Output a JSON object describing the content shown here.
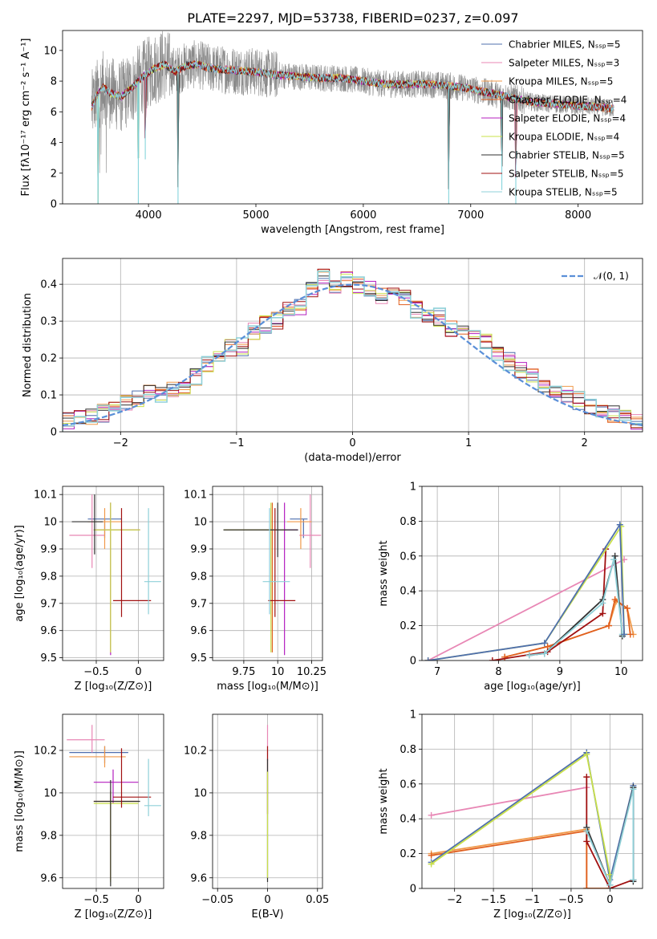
{
  "colors": {
    "Chabrier MILES": "#4f6fae",
    "Salpeter MILES": "#e887b5",
    "Kroupa MILES": "#f0994a",
    "Chabrier ELODIE": "#e05f1e",
    "Salpeter ELODIE": "#b41fbf",
    "Kroupa ELODIE": "#c9e04a",
    "Chabrier STELIB": "#303030",
    "Salpeter STELIB": "#a01010",
    "Kroupa STELIB": "#8fd0d8",
    "gaussian": "#5a8fd8"
  },
  "chart_data": [
    {
      "id": "spectrum",
      "type": "line",
      "title": "PLATE=2297, MJD=53738, FIBERID=0237, z=0.097",
      "xlabel": "wavelength [Angstrom, rest frame]",
      "ylabel": "Flux [fλ10⁻¹⁷ erg cm⁻² s⁻¹ A⁻¹]",
      "xlim": [
        3200,
        8600
      ],
      "ylim": [
        0,
        11.3
      ],
      "xticks": [
        4000,
        5000,
        6000,
        7000,
        8000
      ],
      "yticks": [
        0,
        2,
        4,
        6,
        8,
        10
      ],
      "legend_position": "upper right",
      "legend": [
        "Chabrier MILES, Nₛₛₚ=5",
        "Salpeter MILES, Nₛₛₚ=3",
        "Kroupa MILES, Nₛₛₚ=5",
        "Chabrier ELODIE, Nₛₛₚ=4",
        "Salpeter ELODIE, Nₛₛₚ=4",
        "Kroupa ELODIE, Nₛₛₚ=4",
        "Chabrier STELIB, Nₛₛₚ=5",
        "Salpeter STELIB, Nₛₛₚ=5",
        "Kroupa STELIB, Nₛₛₚ=5"
      ],
      "legend_series": [
        "Chabrier MILES",
        "Salpeter MILES",
        "Kroupa MILES",
        "Chabrier ELODIE",
        "Salpeter ELODIE",
        "Kroupa ELODIE",
        "Chabrier STELIB",
        "Salpeter STELIB",
        "Kroupa STELIB"
      ],
      "continuum": {
        "x": [
          3470,
          3520,
          3580,
          3650,
          3750,
          3850,
          3950,
          4050,
          4150,
          4250,
          4350,
          4450,
          4600,
          4800,
          5000,
          5200,
          5400,
          5600,
          5800,
          6000,
          6200,
          6400,
          6600,
          6800,
          7000,
          7200,
          7400,
          7600,
          7800,
          8000,
          8200,
          8330
        ],
        "y": [
          6.3,
          7.1,
          7.6,
          7.2,
          7.0,
          7.6,
          8.3,
          8.8,
          9.1,
          8.6,
          9.0,
          9.1,
          8.8,
          8.7,
          8.6,
          8.4,
          8.3,
          8.2,
          8.2,
          8.0,
          7.8,
          7.8,
          7.8,
          7.7,
          7.5,
          7.2,
          6.9,
          6.6,
          6.5,
          6.4,
          6.3,
          6.2
        ]
      },
      "absorption_features": [
        {
          "x": 3530,
          "y": 0.0
        },
        {
          "x": 3905,
          "y": 0.0
        },
        {
          "x": 3970,
          "y": 2.9
        },
        {
          "x": 4275,
          "y": 0.0
        },
        {
          "x": 6795,
          "y": 0.0
        },
        {
          "x": 7290,
          "y": 0.9
        },
        {
          "x": 7420,
          "y": 0.0
        }
      ]
    },
    {
      "id": "residuals",
      "type": "line",
      "xlabel": "(data-model)/error",
      "ylabel": "Normed distribution",
      "xlim": [
        -2.5,
        2.5
      ],
      "ylim": [
        0,
        0.47
      ],
      "xticks": [
        -2,
        -1,
        0,
        1,
        2
      ],
      "yticks": [
        0.0,
        0.1,
        0.2,
        0.3,
        0.4
      ],
      "legend": [
        "𝒩(0, 1)"
      ],
      "legend_position": "upper right",
      "bin_edges": [
        -2.5,
        -2.4,
        -2.3,
        -2.2,
        -2.1,
        -2.0,
        -1.9,
        -1.8,
        -1.7,
        -1.6,
        -1.5,
        -1.4,
        -1.3,
        -1.2,
        -1.1,
        -1.0,
        -0.9,
        -0.8,
        -0.7,
        -0.6,
        -0.5,
        -0.4,
        -0.3,
        -0.2,
        -0.1,
        0.0,
        0.1,
        0.2,
        0.3,
        0.4,
        0.5,
        0.6,
        0.7,
        0.8,
        0.9,
        1.0,
        1.1,
        1.2,
        1.3,
        1.4,
        1.5,
        1.6,
        1.7,
        1.8,
        1.9,
        2.0,
        2.1,
        2.2,
        2.3,
        2.4,
        2.5
      ],
      "histogram_base": [
        0.03,
        0.035,
        0.045,
        0.05,
        0.06,
        0.075,
        0.09,
        0.11,
        0.105,
        0.12,
        0.12,
        0.15,
        0.18,
        0.2,
        0.23,
        0.23,
        0.27,
        0.29,
        0.3,
        0.33,
        0.34,
        0.38,
        0.42,
        0.39,
        0.41,
        0.4,
        0.39,
        0.37,
        0.38,
        0.36,
        0.33,
        0.31,
        0.31,
        0.28,
        0.28,
        0.27,
        0.24,
        0.21,
        0.19,
        0.17,
        0.15,
        0.12,
        0.11,
        0.1,
        0.085,
        0.07,
        0.06,
        0.05,
        0.04,
        0.03
      ],
      "gaussian": {
        "mean": 0,
        "sigma": 1
      }
    },
    {
      "id": "age-vs-Z",
      "type": "scatter",
      "xlabel": "Z [log₁₀(Z/Z⊙)]",
      "ylabel": "age  [log₁₀(age/yr)]",
      "xlim": [
        -0.9,
        0.3
      ],
      "ylim": [
        9.49,
        10.13
      ],
      "xticks": [
        -0.5,
        0.0
      ],
      "yticks": [
        9.5,
        9.6,
        9.7,
        9.8,
        9.9,
        10.0,
        10.1
      ],
      "errorbars": [
        {
          "series": "Chabrier MILES",
          "x": -0.4,
          "y": 10.01,
          "xerr": [
            0.2,
            0.2
          ],
          "yerr": [
            0.07,
            0.0
          ]
        },
        {
          "series": "Salpeter MILES",
          "x": -0.55,
          "y": 9.95,
          "xerr": [
            0.27,
            0.15
          ],
          "yerr": [
            0.12,
            0.15
          ]
        },
        {
          "series": "Kroupa MILES",
          "x": -0.4,
          "y": 10.0,
          "xerr": [
            0.2,
            0.2
          ],
          "yerr": [
            0.1,
            0.05
          ]
        },
        {
          "series": "Chabrier ELODIE",
          "x": -0.33,
          "y": 9.97,
          "xerr": [
            0.2,
            0.35
          ],
          "yerr": [
            0.45,
            0.1
          ]
        },
        {
          "series": "Salpeter ELODIE",
          "x": -0.33,
          "y": 9.97,
          "xerr": [
            0.2,
            0.35
          ],
          "yerr": [
            0.46,
            0.1
          ]
        },
        {
          "series": "Kroupa ELODIE",
          "x": -0.33,
          "y": 9.97,
          "xerr": [
            0.2,
            0.35
          ],
          "yerr": [
            0.45,
            0.1
          ]
        },
        {
          "series": "Chabrier STELIB",
          "x": -0.52,
          "y": 10.0,
          "xerr": [
            0.27,
            0.1
          ],
          "yerr": [
            0.12,
            0.1
          ]
        },
        {
          "series": "Salpeter STELIB",
          "x": -0.2,
          "y": 9.71,
          "xerr": [
            0.1,
            0.35
          ],
          "yerr": [
            0.06,
            0.34
          ]
        },
        {
          "series": "Kroupa STELIB",
          "x": 0.12,
          "y": 9.78,
          "xerr": [
            0.05,
            0.15
          ],
          "yerr": [
            0.12,
            0.27
          ]
        }
      ]
    },
    {
      "id": "age-vs-mass",
      "type": "scatter",
      "xlabel": "mass [log₁₀(M/M⊙)]",
      "ylabel": "",
      "xlim": [
        9.52,
        10.33
      ],
      "ylim": [
        9.49,
        10.13
      ],
      "xticks": [
        9.75,
        10.0,
        10.25
      ],
      "yticks": [
        9.5,
        9.6,
        9.7,
        9.8,
        9.9,
        10.0,
        10.1
      ],
      "errorbars": [
        {
          "series": "Chabrier MILES",
          "x": 10.19,
          "y": 10.01,
          "xerr": [
            0.1,
            0.03
          ],
          "yerr": [
            0.07,
            0.0
          ]
        },
        {
          "series": "Salpeter MILES",
          "x": 10.24,
          "y": 9.95,
          "xerr": [
            0.08,
            0.08
          ],
          "yerr": [
            0.12,
            0.15
          ]
        },
        {
          "series": "Kroupa MILES",
          "x": 10.17,
          "y": 10.0,
          "xerr": [
            0.1,
            0.08
          ],
          "yerr": [
            0.1,
            0.05
          ]
        },
        {
          "series": "Chabrier ELODIE",
          "x": 9.96,
          "y": 9.97,
          "xerr": [
            0.35,
            0.1
          ],
          "yerr": [
            0.45,
            0.1
          ]
        },
        {
          "series": "Salpeter ELODIE",
          "x": 10.05,
          "y": 9.97,
          "xerr": [
            0.1,
            0.1
          ],
          "yerr": [
            0.46,
            0.1
          ]
        },
        {
          "series": "Kroupa ELODIE",
          "x": 9.95,
          "y": 9.97,
          "xerr": [
            0.35,
            0.1
          ],
          "yerr": [
            0.45,
            0.1
          ]
        },
        {
          "series": "Chabrier STELIB",
          "x": 10.0,
          "y": 9.97,
          "xerr": [
            0.4,
            0.15
          ],
          "yerr": [
            0.1,
            0.1
          ]
        },
        {
          "series": "Salpeter STELIB",
          "x": 9.98,
          "y": 9.71,
          "xerr": [
            0.05,
            0.15
          ],
          "yerr": [
            0.06,
            0.34
          ]
        },
        {
          "series": "Kroupa STELIB",
          "x": 9.94,
          "y": 9.78,
          "xerr": [
            0.05,
            0.15
          ],
          "yerr": [
            0.12,
            0.27
          ]
        }
      ]
    },
    {
      "id": "massweight-vs-age",
      "type": "line",
      "xlabel": "age  [log₁₀(age/yr)]",
      "ylabel": "mass weight",
      "xlim": [
        6.75,
        10.35
      ],
      "ylim": [
        0,
        1.0
      ],
      "xticks": [
        7,
        8,
        9,
        10
      ],
      "yticks": [
        0.0,
        0.2,
        0.4,
        0.6,
        0.8,
        1.0
      ],
      "series": [
        {
          "name": "Kroupa MILES",
          "x": [
            8.1,
            8.8,
            9.8,
            9.92,
            10.1,
            10.2
          ],
          "y": [
            0.02,
            0.08,
            0.2,
            0.34,
            0.3,
            0.15
          ]
        },
        {
          "name": "Chabrier ELODIE",
          "x": [
            8.1,
            8.8,
            9.8,
            9.9,
            10.1,
            10.15
          ],
          "y": [
            0.02,
            0.08,
            0.2,
            0.35,
            0.3,
            0.15
          ]
        },
        {
          "name": "Salpeter MILES",
          "x": [
            6.85,
            10.05
          ],
          "y": [
            0.0,
            0.58
          ]
        },
        {
          "name": "Salpeter STELIB",
          "x": [
            7.9,
            8.8,
            9.7,
            9.75
          ],
          "y": [
            0.0,
            0.05,
            0.27,
            0.64
          ]
        },
        {
          "name": "Chabrier STELIB",
          "x": [
            8.5,
            8.75,
            9.7,
            9.9,
            10.02
          ],
          "y": [
            0.03,
            0.04,
            0.35,
            0.6,
            0.14
          ]
        },
        {
          "name": "Kroupa STELIB",
          "x": [
            8.5,
            8.75,
            9.7,
            9.88,
            10.02
          ],
          "y": [
            0.03,
            0.04,
            0.33,
            0.58,
            0.15
          ]
        },
        {
          "name": "Kroupa ELODIE",
          "x": [
            6.85,
            8.75,
            10.0,
            10.05
          ],
          "y": [
            0.0,
            0.1,
            0.77,
            0.15
          ]
        },
        {
          "name": "Chabrier MILES",
          "x": [
            6.85,
            8.75,
            9.98,
            10.05
          ],
          "y": [
            0.0,
            0.1,
            0.78,
            0.15
          ]
        }
      ]
    },
    {
      "id": "mass-vs-Z",
      "type": "scatter",
      "xlabel": "Z [log₁₀(Z/Z⊙)]",
      "ylabel": "mass [log₁₀(M/M⊙)]",
      "xlim": [
        -0.9,
        0.3
      ],
      "ylim": [
        9.55,
        10.37
      ],
      "xticks": [
        -0.5,
        0.0
      ],
      "yticks": [
        9.6,
        9.8,
        10.0,
        10.2
      ],
      "errorbars": [
        {
          "series": "Chabrier MILES",
          "x": -0.4,
          "y": 10.19,
          "xerr": [
            0.42,
            0.28
          ],
          "yerr": [
            0.05,
            0.03
          ]
        },
        {
          "series": "Salpeter MILES",
          "x": -0.55,
          "y": 10.25,
          "xerr": [
            0.3,
            0.15
          ],
          "yerr": [
            0.06,
            0.07
          ]
        },
        {
          "series": "Kroupa MILES",
          "x": -0.4,
          "y": 10.17,
          "xerr": [
            0.42,
            0.25
          ],
          "yerr": [
            0.05,
            0.05
          ]
        },
        {
          "series": "Chabrier ELODIE",
          "x": -0.33,
          "y": 9.96,
          "xerr": [
            0.2,
            0.33
          ],
          "yerr": [
            0.37,
            0.05
          ]
        },
        {
          "series": "Salpeter ELODIE",
          "x": -0.3,
          "y": 10.05,
          "xerr": [
            0.23,
            0.3
          ],
          "yerr": [
            0.1,
            0.06
          ]
        },
        {
          "series": "Kroupa ELODIE",
          "x": -0.33,
          "y": 9.95,
          "xerr": [
            0.2,
            0.33
          ],
          "yerr": [
            0.37,
            0.05
          ]
        },
        {
          "series": "Chabrier STELIB",
          "x": -0.33,
          "y": 9.96,
          "xerr": [
            0.2,
            0.35
          ],
          "yerr": [
            0.4,
            0.1
          ]
        },
        {
          "series": "Salpeter STELIB",
          "x": -0.2,
          "y": 9.98,
          "xerr": [
            0.1,
            0.35
          ],
          "yerr": [
            0.05,
            0.23
          ]
        },
        {
          "series": "Kroupa STELIB",
          "x": 0.12,
          "y": 9.94,
          "xerr": [
            0.05,
            0.15
          ],
          "yerr": [
            0.05,
            0.22
          ]
        }
      ]
    },
    {
      "id": "mass-vs-ebv",
      "type": "scatter",
      "xlabel": "E(B-V)",
      "ylabel": "",
      "xlim": [
        -0.055,
        0.055
      ],
      "ylim": [
        9.55,
        10.37
      ],
      "xticks": [
        -0.05,
        0.0,
        0.05
      ],
      "yticks": [
        9.6,
        9.8,
        10.0,
        10.2
      ],
      "errorbars": [
        {
          "series": "Salpeter MILES",
          "x": 0.0,
          "y": 10.25,
          "xerr": [
            0,
            0
          ],
          "yerr": [
            0.1,
            0.07
          ]
        },
        {
          "series": "Salpeter STELIB",
          "x": 0.0,
          "y": 10.0,
          "xerr": [
            0,
            0
          ],
          "yerr": [
            0.1,
            0.22
          ]
        },
        {
          "series": "Chabrier STELIB",
          "x": 0.0,
          "y": 9.96,
          "xerr": [
            0,
            0
          ],
          "yerr": [
            0.38,
            0.2
          ]
        },
        {
          "series": "Kroupa ELODIE",
          "x": 0.0,
          "y": 9.95,
          "xerr": [
            0,
            0
          ],
          "yerr": [
            0.35,
            0.15
          ]
        }
      ]
    },
    {
      "id": "massweight-vs-Z",
      "type": "line",
      "xlabel": "Z [log₁₀(Z/Z⊙)]",
      "ylabel": "mass weight",
      "xlim": [
        -2.42,
        0.42
      ],
      "ylim": [
        0,
        1.0
      ],
      "xticks": [
        -2.0,
        -1.5,
        -1.0,
        -0.5,
        0.0
      ],
      "yticks": [
        0.0,
        0.2,
        0.4,
        0.6,
        0.8,
        1.0
      ],
      "series": [
        {
          "name": "Salpeter MILES",
          "x": [
            -2.3,
            -0.3
          ],
          "y": [
            0.42,
            0.58
          ]
        },
        {
          "name": "Kroupa MILES",
          "x": [
            -2.3,
            -0.3,
            -0.3,
            0.0
          ],
          "y": [
            0.2,
            0.34,
            0.0,
            0.0
          ]
        },
        {
          "name": "Chabrier ELODIE",
          "x": [
            -2.3,
            -0.3,
            -0.3,
            0.0
          ],
          "y": [
            0.19,
            0.33,
            0.0,
            0.0
          ]
        },
        {
          "name": "Chabrier MILES",
          "x": [
            -2.3,
            -0.3,
            0.0,
            0.3,
            0.3
          ],
          "y": [
            0.15,
            0.78,
            0.05,
            0.59,
            0.05
          ]
        },
        {
          "name": "Kroupa ELODIE",
          "x": [
            -2.3,
            -0.3,
            0.0,
            0.0
          ],
          "y": [
            0.14,
            0.77,
            0.08,
            0.0
          ]
        },
        {
          "name": "Salpeter STELIB",
          "x": [
            -0.3,
            -0.3,
            0.0,
            0.3
          ],
          "y": [
            0.64,
            0.27,
            0.0,
            0.05
          ]
        },
        {
          "name": "Chabrier STELIB",
          "x": [
            -0.3,
            0.0,
            0.3,
            0.3
          ],
          "y": [
            0.35,
            0.02,
            0.58,
            0.04
          ]
        },
        {
          "name": "Kroupa STELIB",
          "x": [
            -0.3,
            0.0,
            0.3,
            0.3
          ],
          "y": [
            0.33,
            0.02,
            0.57,
            0.05
          ]
        }
      ]
    }
  ]
}
